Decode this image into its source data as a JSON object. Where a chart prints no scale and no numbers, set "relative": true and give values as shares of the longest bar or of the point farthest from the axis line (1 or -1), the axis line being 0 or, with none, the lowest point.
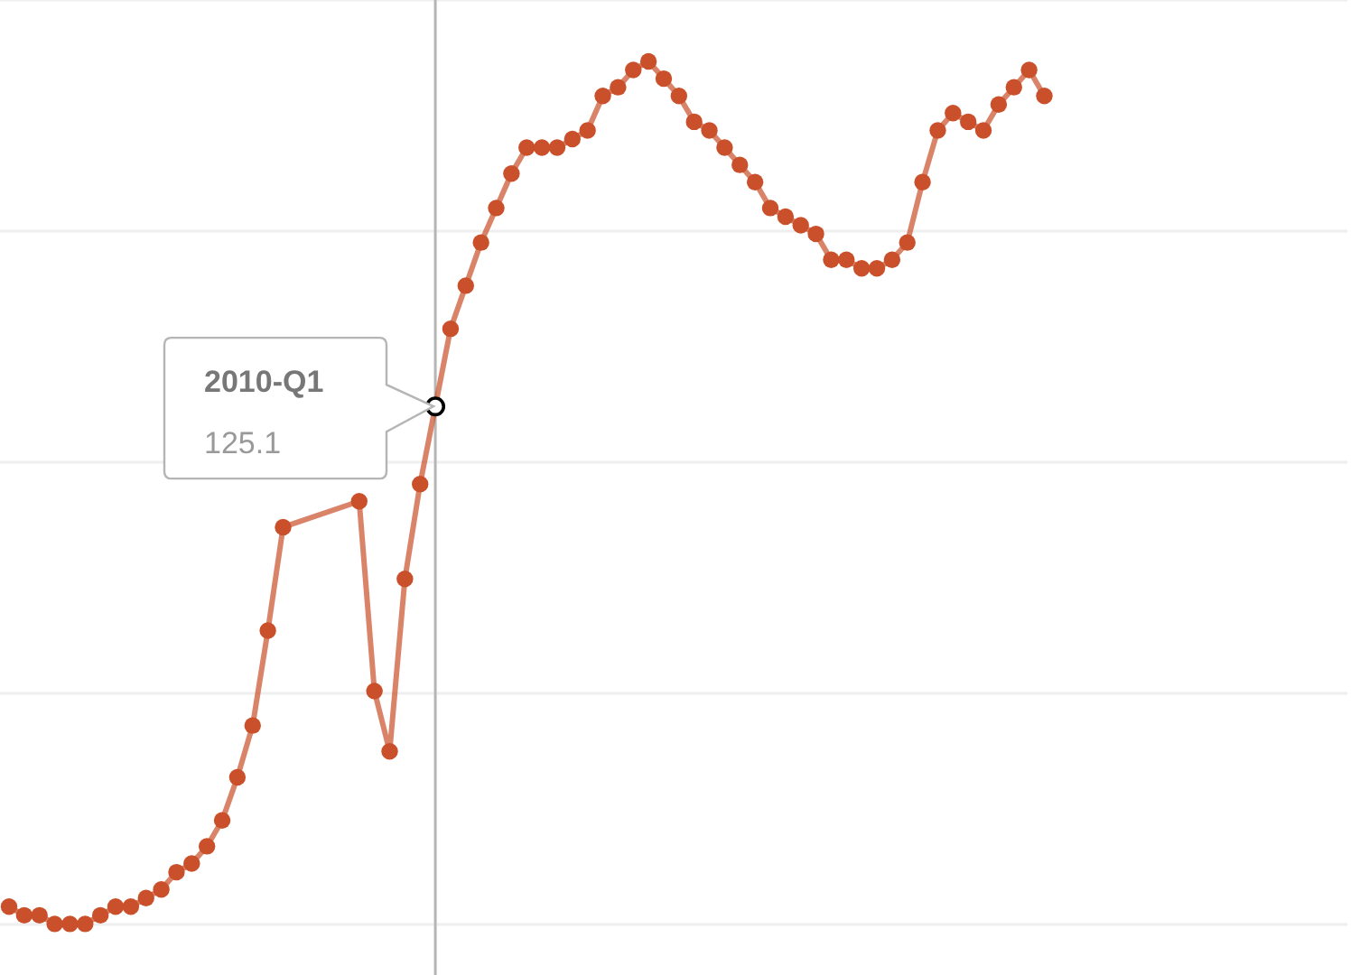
{
  "chart_data": {
    "type": "line",
    "relative": true,
    "marker": "circle",
    "line_style": "solid",
    "categories": [
      null,
      null,
      null,
      null,
      null,
      null,
      null,
      null,
      null,
      null,
      null,
      null,
      null,
      null,
      null,
      null,
      null,
      null,
      null,
      null,
      null,
      null,
      null,
      null,
      null,
      null,
      null,
      null,
      null,
      null,
      null,
      null,
      null,
      null,
      null,
      null,
      null,
      null,
      null,
      null,
      null,
      null,
      null,
      null,
      null,
      null,
      null,
      null,
      null,
      null,
      null,
      null,
      null,
      null,
      null,
      null,
      null,
      null,
      null,
      null,
      null,
      null,
      null,
      null,
      null,
      null,
      null,
      null,
      null
    ],
    "series": [
      {
        "color": "#c9502a",
        "values": [
          0.02,
          0.01,
          0.01,
          0.0,
          0,
          0.0,
          0.01,
          0.02,
          0.02,
          0.03,
          0.04,
          0.06,
          0.07,
          0.09,
          0.12,
          0.17,
          0.23,
          0.34,
          0.46,
          null,
          null,
          null,
          null,
          0.49,
          0.27,
          0.2,
          0.4,
          0.51,
          0.6,
          0.69,
          0.74,
          0.79,
          0.83,
          0.87,
          0.9,
          0.9,
          0.9,
          0.91,
          0.92,
          0.96,
          0.97,
          0.99,
          1,
          0.98,
          0.96,
          0.93,
          0.92,
          0.9,
          0.88,
          0.86,
          0.83,
          0.82,
          0.81,
          0.8,
          0.77,
          0.77,
          0.76,
          0.76,
          0.77,
          0.79,
          0.86,
          0.92,
          0.94,
          0.93,
          0.92,
          0.95,
          0.97,
          0.99,
          0.96
        ]
      }
    ],
    "annotations": [
      "2010-Q1",
      "125.1"
    ]
  }
}
